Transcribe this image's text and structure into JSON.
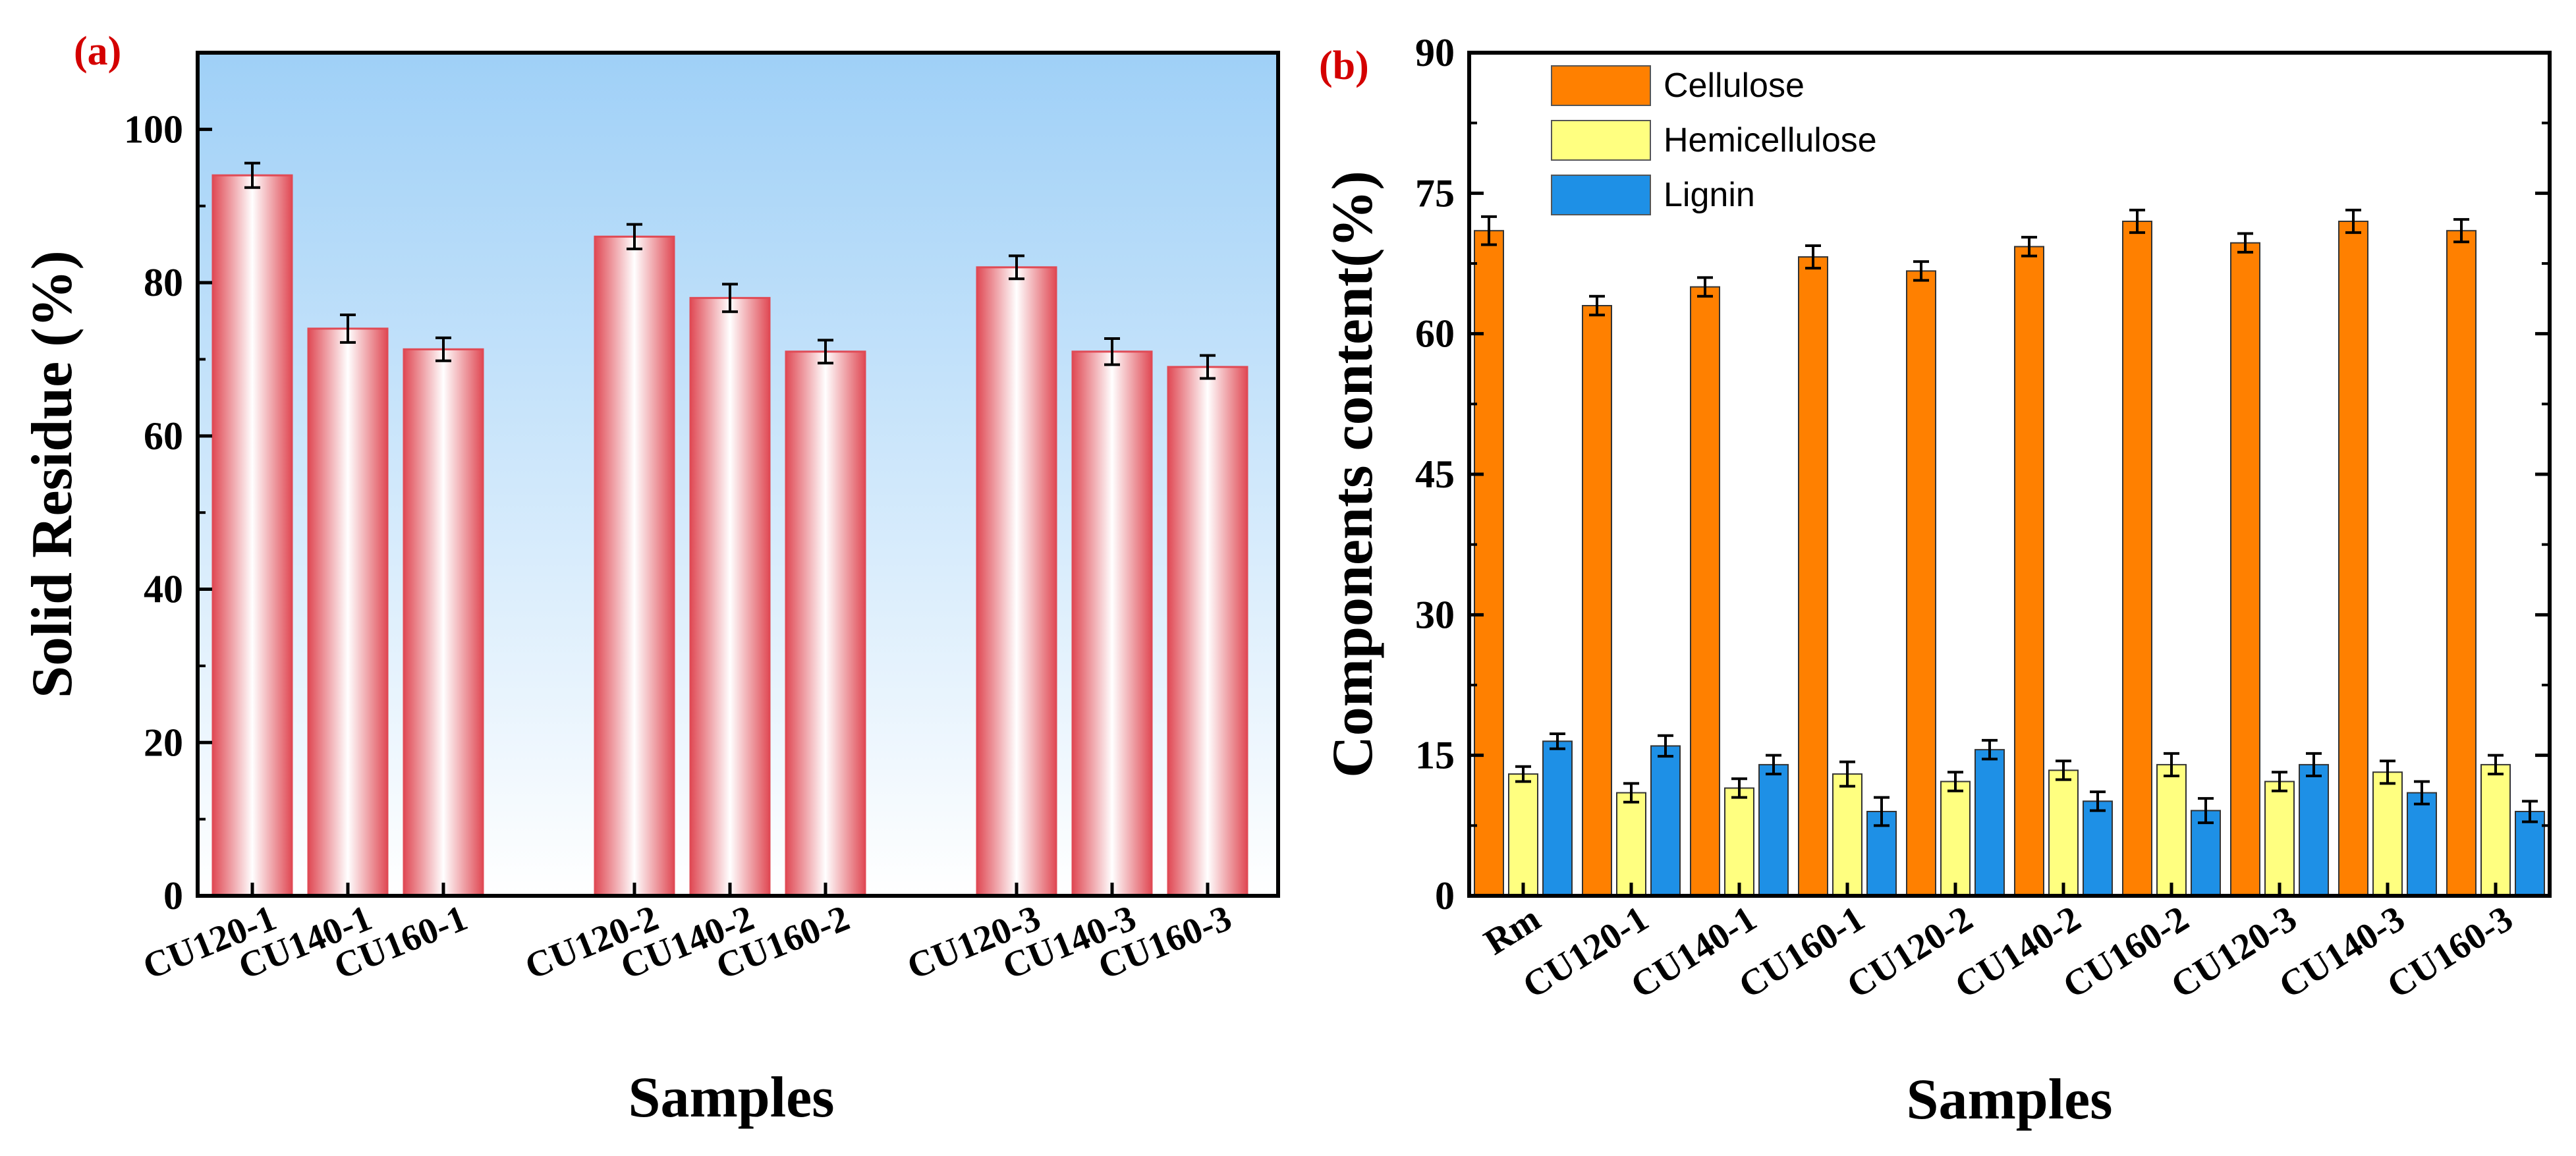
{
  "chart_data": [
    {
      "panel": "(a)",
      "type": "bar",
      "categories": [
        "CU120-1",
        "CU140-1",
        "CU160-1",
        "CU120-2",
        "CU140-2",
        "CU160-2",
        "CU120-3",
        "CU140-3",
        "CU160-3"
      ],
      "groups": [
        [
          "CU120-1",
          "CU140-1",
          "CU160-1"
        ],
        [
          "CU120-2",
          "CU140-2",
          "CU160-2"
        ],
        [
          "CU120-3",
          "CU140-3",
          "CU160-3"
        ]
      ],
      "values": [
        94,
        74,
        71.3,
        86,
        78,
        71,
        82,
        71,
        69
      ],
      "errors": [
        1.6,
        1.8,
        1.5,
        1.6,
        1.8,
        1.5,
        1.5,
        1.7,
        1.5
      ],
      "xlabel": "Samples",
      "ylabel": "Solid Residue (%)",
      "ylim": [
        0,
        110
      ],
      "yticks": [
        0,
        20,
        40,
        60,
        80,
        100
      ],
      "colors": {
        "bar_edge": "#e04a55",
        "bar_center": "#ffffff",
        "bg_top": "#9fd0f7",
        "bg_bottom": "#ffffff"
      }
    },
    {
      "panel": "(b)",
      "type": "bar",
      "categories": [
        "Rm",
        "CU120-1",
        "CU140-1",
        "CU160-1",
        "CU120-2",
        "CU140-2",
        "CU160-2",
        "CU120-3",
        "CU140-3",
        "CU160-3"
      ],
      "series": [
        {
          "name": "Cellulose",
          "color": "#ff8000",
          "values": [
            71,
            63,
            65,
            68.2,
            66.7,
            69.3,
            72,
            69.7,
            72,
            71
          ],
          "errors": [
            1.5,
            1,
            1,
            1.2,
            1,
            1,
            1.2,
            1,
            1.2,
            1.2
          ]
        },
        {
          "name": "Hemicellulose",
          "color": "#ffff80",
          "values": [
            13,
            11,
            11.5,
            13,
            12.2,
            13.4,
            14,
            12.2,
            13.2,
            14
          ],
          "errors": [
            0.8,
            1,
            1,
            1.3,
            1,
            1,
            1.2,
            1,
            1.2,
            1
          ]
        },
        {
          "name": "Lignin",
          "color": "#1e90e6",
          "values": [
            16.5,
            16,
            14,
            9,
            15.6,
            10.1,
            9.1,
            14,
            11,
            9
          ],
          "errors": [
            0.8,
            1.1,
            1,
            1.5,
            1,
            1,
            1.3,
            1.2,
            1.2,
            1.1
          ]
        }
      ],
      "xlabel": "Samples",
      "ylabel": "Components content(%)",
      "ylim": [
        0,
        90
      ],
      "yticks": [
        0,
        15,
        30,
        45,
        60,
        75,
        90
      ],
      "legend": "top-left"
    }
  ]
}
